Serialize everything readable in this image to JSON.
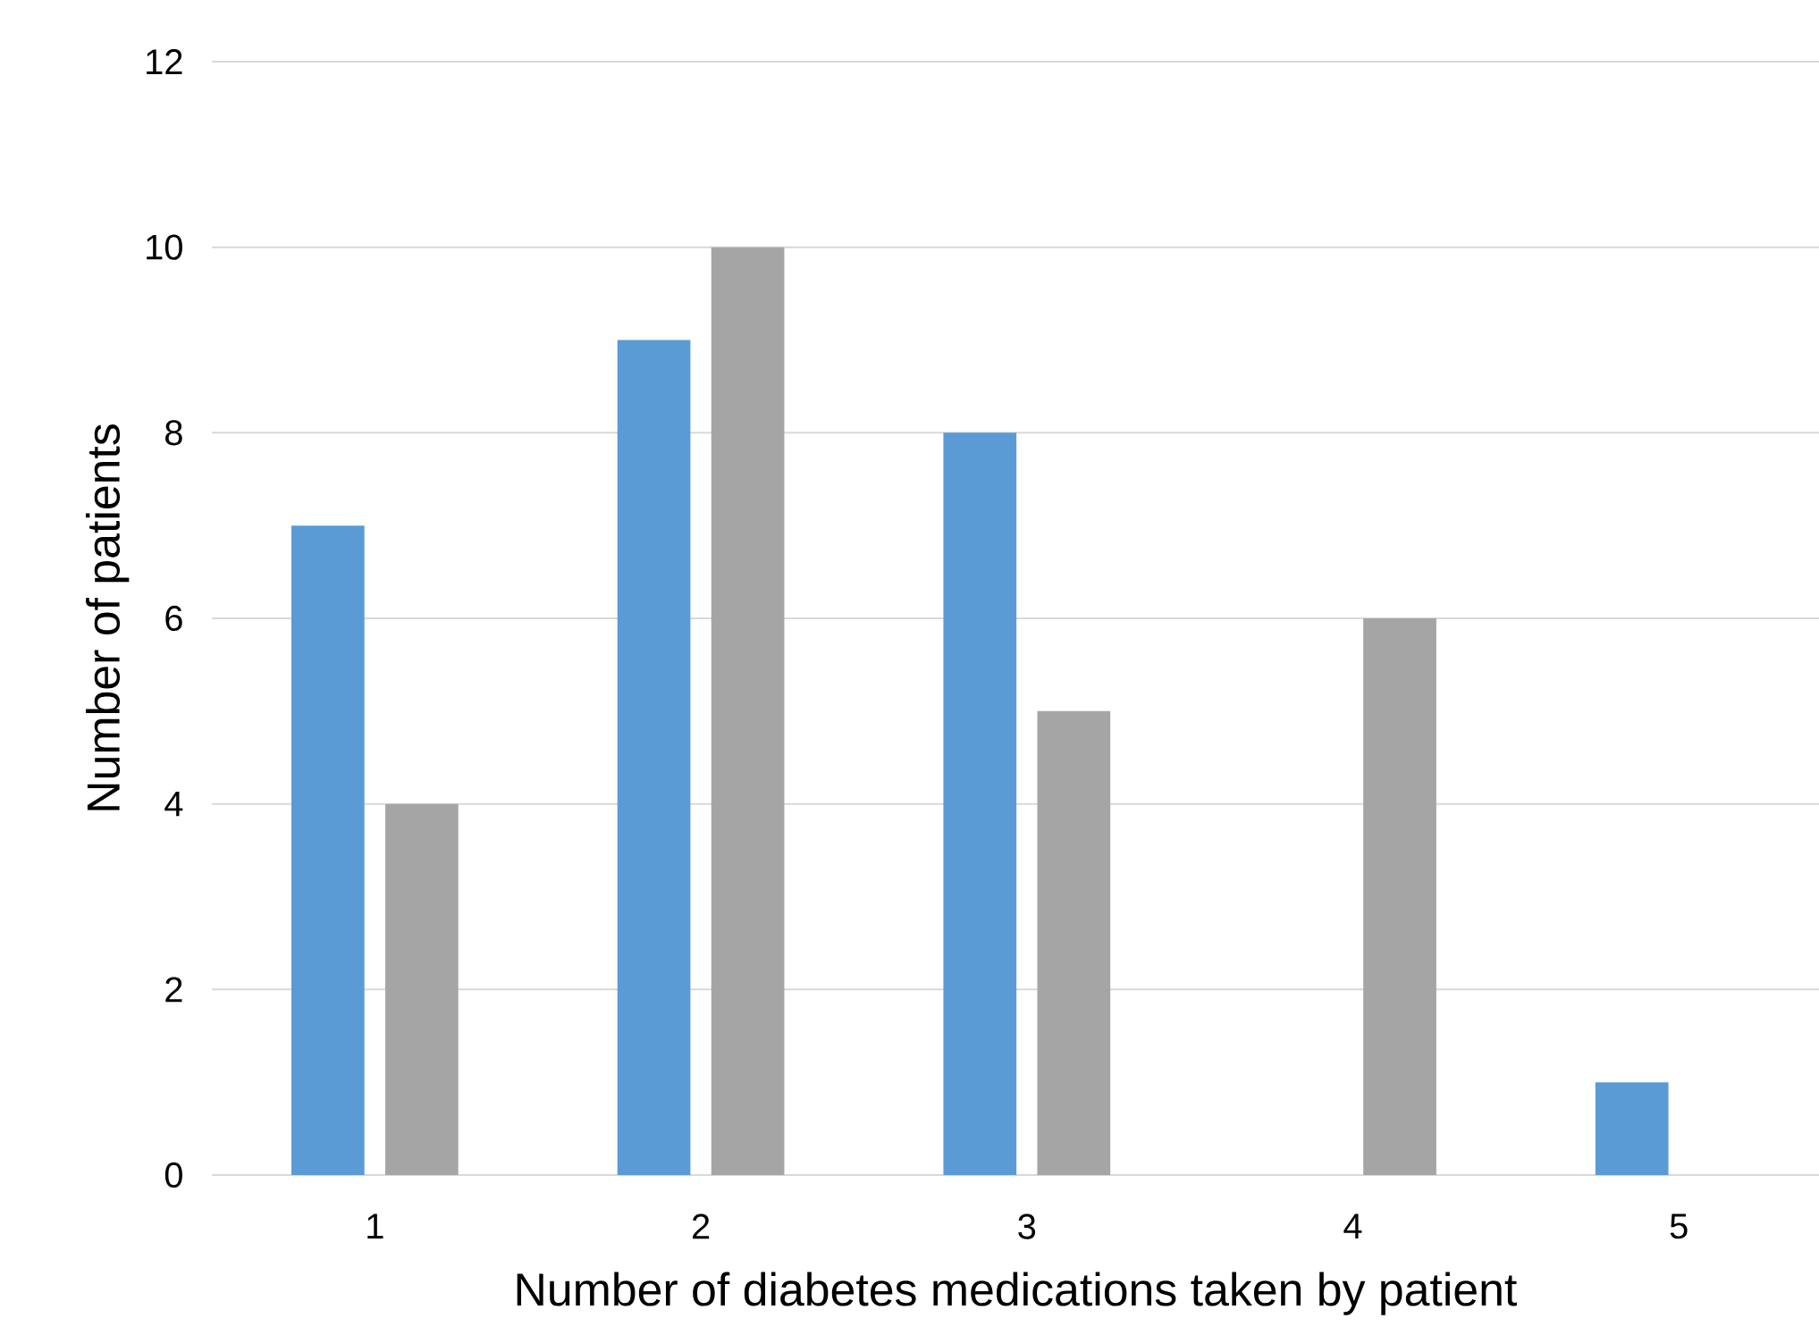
{
  "chart_data": {
    "type": "bar",
    "xlabel": "Number of diabetes medications taken by patient",
    "ylabel": "Number of patients",
    "categories": [
      "1",
      "2",
      "3",
      "4",
      "5"
    ],
    "series": [
      {
        "color": "#5b9bd5",
        "values": [
          7,
          9,
          8,
          null,
          1
        ]
      },
      {
        "color": "#a5a5a5",
        "values": [
          4,
          10,
          5,
          6,
          null
        ]
      }
    ],
    "ylim": [
      0,
      12
    ],
    "yticks": [
      0,
      2,
      4,
      6,
      8,
      10,
      12
    ],
    "grid": "y"
  }
}
